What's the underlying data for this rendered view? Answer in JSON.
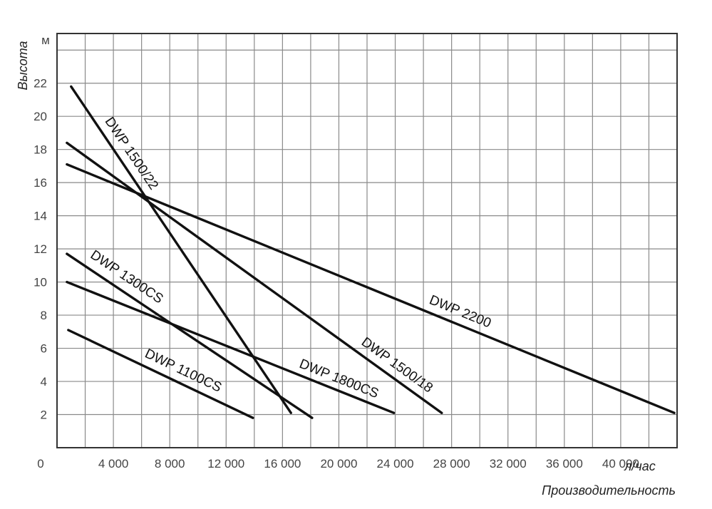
{
  "chart_data": {
    "type": "line",
    "xlabel": "Производительность",
    "x_unit": "л/час",
    "ylabel": "Высота",
    "y_unit": "м",
    "origin_label": "0",
    "xlim": [
      0,
      44000
    ],
    "ylim": [
      0,
      25
    ],
    "x_ticks": [
      4000,
      8000,
      12000,
      16000,
      20000,
      24000,
      28000,
      32000,
      36000,
      40000
    ],
    "x_tick_labels": [
      "4 000",
      "8 000",
      "12 000",
      "16 000",
      "20 000",
      "24 000",
      "28 000",
      "32 000",
      "36 000",
      "40 000"
    ],
    "y_ticks": [
      2,
      4,
      6,
      8,
      10,
      12,
      14,
      16,
      18,
      20,
      22
    ],
    "y_tick_labels": [
      "2",
      "4",
      "6",
      "8",
      "10",
      "12",
      "14",
      "16",
      "18",
      "20",
      "22"
    ],
    "grid": true,
    "series": [
      {
        "name": "DWP 1500/22",
        "x": [
          1000,
          16600
        ],
        "y": [
          21.8,
          2.1
        ]
      },
      {
        "name": "DWP 1500/18",
        "x": [
          700,
          27300
        ],
        "y": [
          18.4,
          2.1
        ]
      },
      {
        "name": "DWP 2200",
        "x": [
          700,
          43800
        ],
        "y": [
          17.1,
          2.1
        ]
      },
      {
        "name": "DWP 1300CS",
        "x": [
          700,
          18100
        ],
        "y": [
          11.7,
          1.8
        ]
      },
      {
        "name": "DWP 1800CS",
        "x": [
          700,
          23900
        ],
        "y": [
          10.0,
          2.1
        ]
      },
      {
        "name": "DWP 1100CS",
        "x": [
          800,
          13900
        ],
        "y": [
          7.1,
          1.8
        ]
      }
    ]
  }
}
